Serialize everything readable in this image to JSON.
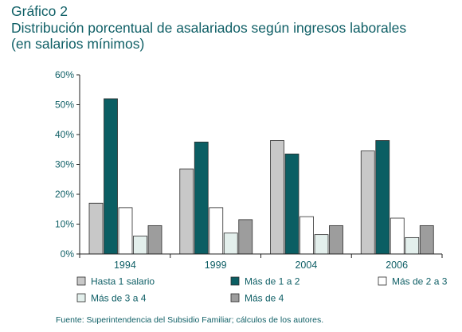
{
  "header": {
    "figure_label": "Gráfico 2",
    "title": "Distribución porcentual de asalariados según ingresos laborales",
    "subtitle": "(en salarios mínimos)"
  },
  "source": "Fuente: Superintendencia del Subsidio Familiar; cálculos de los autores.",
  "chart_data": {
    "type": "bar",
    "categories": [
      "1994",
      "1999",
      "2004",
      "2006"
    ],
    "series": [
      {
        "name": "Hasta 1 salario",
        "color": "#c8c8c8",
        "values": [
          17,
          28.5,
          38,
          34.5
        ]
      },
      {
        "name": "Más de 1 a 2",
        "color": "#0b5e63",
        "values": [
          52,
          37.5,
          33.5,
          38
        ]
      },
      {
        "name": "Más de 2 a 3",
        "color": "#ffffff",
        "values": [
          15.5,
          15.5,
          12.5,
          12
        ]
      },
      {
        "name": "Más de 3 a 4",
        "color": "#e3efec",
        "values": [
          6,
          7,
          6.5,
          5.5
        ]
      },
      {
        "name": "Más de 4",
        "color": "#9d9d9d",
        "values": [
          9.5,
          11.5,
          9.5,
          9.5
        ]
      }
    ],
    "ylim": [
      0,
      60
    ],
    "yticks": [
      "0%",
      "10%",
      "20%",
      "30%",
      "40%",
      "50%",
      "60%"
    ],
    "ytick_values": [
      0,
      10,
      20,
      30,
      40,
      50,
      60
    ],
    "grid": false,
    "legend_position": "bottom"
  }
}
